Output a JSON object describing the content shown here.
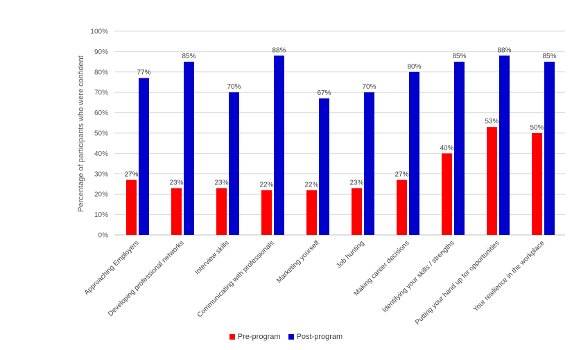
{
  "chart_data": {
    "type": "bar",
    "ylabel": "Percentage of participants who were confident",
    "ylim": [
      0,
      100
    ],
    "y_ticks": [
      "0%",
      "10%",
      "20%",
      "30%",
      "40%",
      "50%",
      "60%",
      "70%",
      "80%",
      "90%",
      "100%"
    ],
    "grid": true,
    "legend_position": "bottom",
    "categories": [
      "Approaching Employers",
      "Developing professional networks",
      "Interview skills",
      "Communicating with professionals",
      "Marketing yourself",
      "Job hunting",
      "Making career decisions",
      "Identifying your skills / strengths",
      "Putting your hand up for opportunities",
      "Your resilience in the workplace"
    ],
    "series": [
      {
        "name": "Pre-program",
        "color": "#ff0000",
        "values": [
          27,
          23,
          23,
          22,
          22,
          23,
          27,
          40,
          53,
          50
        ],
        "labels": [
          "27%",
          "23%",
          "23%",
          "22%",
          "22%",
          "23%",
          "27%",
          "40%",
          "53%",
          "50%"
        ]
      },
      {
        "name": "Post-program",
        "color": "#0000cc",
        "values": [
          77,
          85,
          70,
          88,
          67,
          70,
          80,
          85,
          88,
          85
        ],
        "labels": [
          "77%",
          "85%",
          "70%",
          "88%",
          "67%",
          "70%",
          "80%",
          "85%",
          "88%",
          "85%"
        ]
      }
    ]
  }
}
